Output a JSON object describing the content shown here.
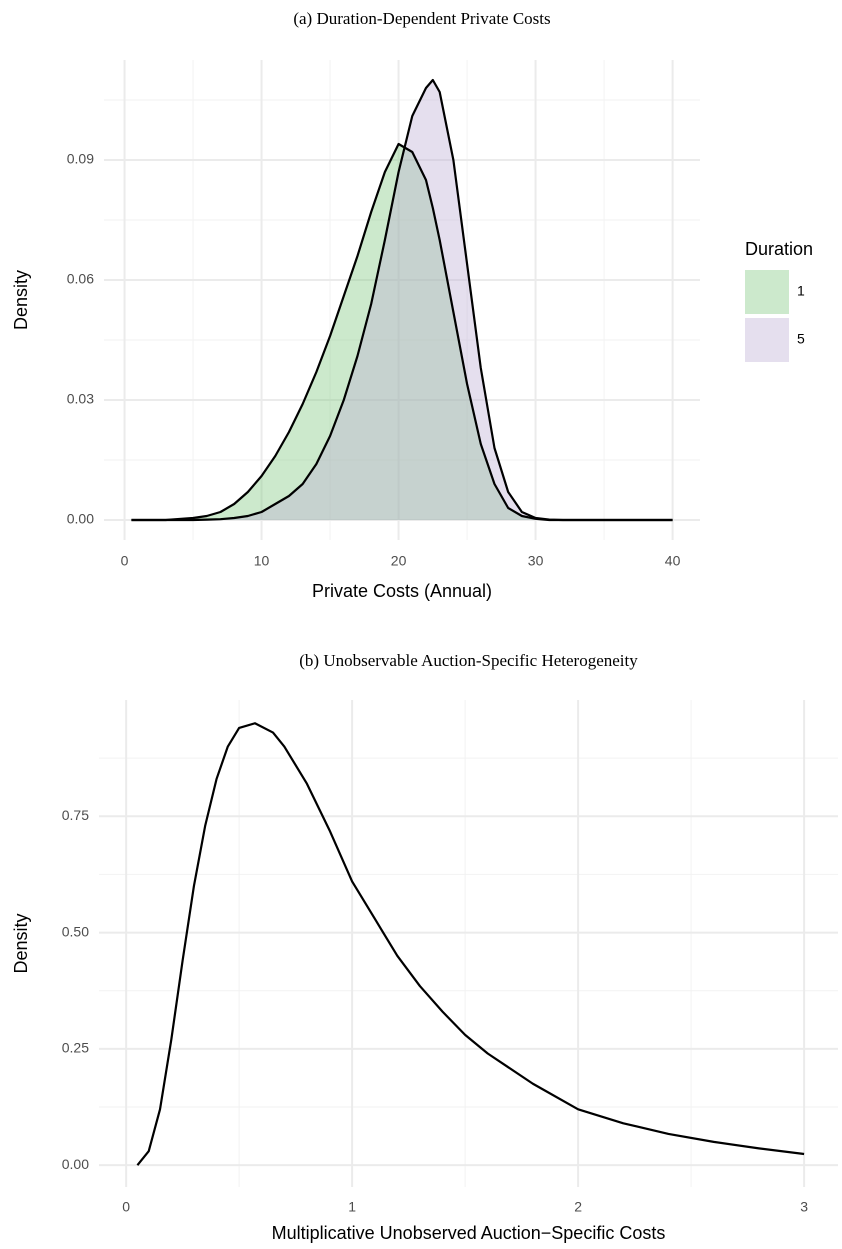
{
  "chart_data": [
    {
      "type": "area",
      "title": "(a) Duration-Dependent Private Costs",
      "x_label": "Private Costs (Annual)",
      "y_label": "Density",
      "legend_title": "Duration",
      "legend": "right",
      "grid": true,
      "fill_opacity": 0.4,
      "x": [
        0.5,
        3,
        5,
        6,
        7,
        8,
        9,
        10,
        11,
        12,
        13,
        14,
        15,
        16,
        17,
        18,
        19,
        20,
        21,
        22,
        22.5,
        23,
        24,
        25,
        26,
        27,
        28,
        29,
        30,
        31,
        32,
        35,
        40
      ],
      "series": [
        {
          "name": "1",
          "color": "#7fc97f",
          "values": [
            0,
            0,
            0.0005,
            0.001,
            0.002,
            0.004,
            0.007,
            0.011,
            0.016,
            0.022,
            0.029,
            0.037,
            0.046,
            0.056,
            0.066,
            0.077,
            0.087,
            0.094,
            0.092,
            0.085,
            0.078,
            0.07,
            0.052,
            0.034,
            0.019,
            0.009,
            0.003,
            0.001,
            0.0003,
            0,
            0,
            0,
            0
          ]
        },
        {
          "name": "5",
          "color": "#beaed4",
          "values": [
            0,
            0,
            0,
            0.0001,
            0.0002,
            0.0005,
            0.001,
            0.002,
            0.004,
            0.006,
            0.009,
            0.014,
            0.021,
            0.03,
            0.041,
            0.054,
            0.07,
            0.087,
            0.101,
            0.108,
            0.11,
            0.107,
            0.09,
            0.064,
            0.038,
            0.018,
            0.007,
            0.002,
            0.0005,
            0.0001,
            0,
            0,
            0
          ]
        }
      ],
      "xlim": [
        -1.5,
        42
      ],
      "ylim": [
        -0.005,
        0.115
      ],
      "xticks": [
        0,
        10,
        20,
        30,
        40
      ],
      "yticks": [
        {
          "value": 0,
          "label": "0.00"
        },
        {
          "value": 0.03,
          "label": "0.03"
        },
        {
          "value": 0.06,
          "label": "0.06"
        },
        {
          "value": 0.09,
          "label": "0.09"
        }
      ],
      "minor_xticks": [
        5,
        15,
        25,
        35
      ],
      "minor_yticks": [
        0.015,
        0.045,
        0.075,
        0.105
      ]
    },
    {
      "type": "line",
      "title": "(b) Unobservable Auction-Specific Heterogeneity",
      "x_label": "Multiplicative Unobserved Auction−Specific Costs",
      "y_label": "Density",
      "grid": true,
      "x": [
        0.05,
        0.1,
        0.15,
        0.2,
        0.25,
        0.3,
        0.35,
        0.4,
        0.45,
        0.5,
        0.57,
        0.65,
        0.7,
        0.8,
        0.9,
        1.0,
        1.1,
        1.2,
        1.3,
        1.4,
        1.5,
        1.6,
        1.8,
        2.0,
        2.2,
        2.4,
        2.6,
        2.8,
        3.0
      ],
      "series": [
        {
          "name": "Density",
          "color": "#000000",
          "values": [
            0,
            0.03,
            0.12,
            0.27,
            0.44,
            0.6,
            0.73,
            0.83,
            0.9,
            0.94,
            0.95,
            0.93,
            0.9,
            0.82,
            0.72,
            0.61,
            0.53,
            0.45,
            0.385,
            0.33,
            0.28,
            0.24,
            0.175,
            0.12,
            0.09,
            0.067,
            0.05,
            0.036,
            0.024
          ]
        }
      ],
      "xlim": [
        -0.12,
        3.15
      ],
      "ylim": [
        -0.047,
        1.0
      ],
      "xticks": [
        0,
        1,
        2,
        3
      ],
      "yticks": [
        {
          "value": 0,
          "label": "0.00"
        },
        {
          "value": 0.25,
          "label": "0.25"
        },
        {
          "value": 0.5,
          "label": "0.50"
        },
        {
          "value": 0.75,
          "label": "0.75"
        }
      ],
      "minor_xticks": [
        0.5,
        1.5,
        2.5
      ],
      "minor_yticks": [
        0.125,
        0.375,
        0.625,
        0.875
      ]
    }
  ]
}
